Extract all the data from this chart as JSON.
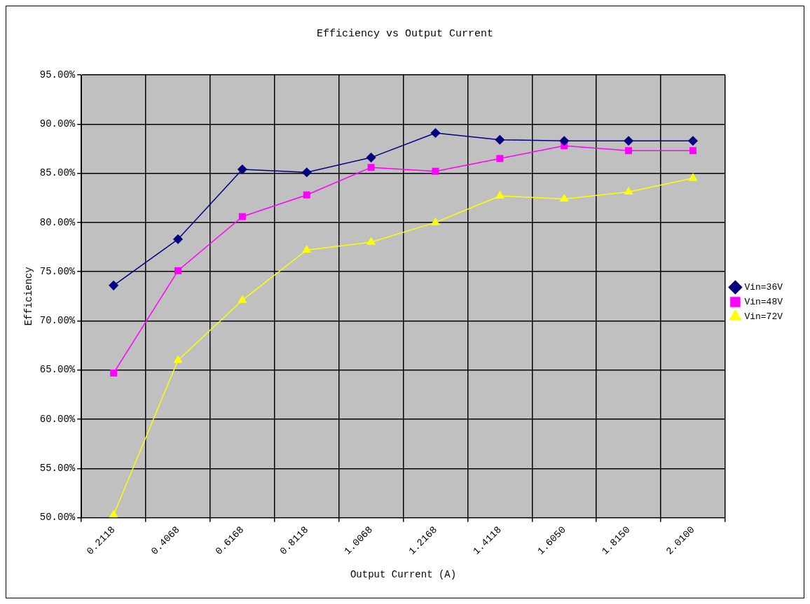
{
  "chart_data": {
    "type": "line",
    "title": "Efficiency vs Output Current",
    "xlabel": "Output Current (A)",
    "ylabel": "Efficiency",
    "categories": [
      "0.2118",
      "0.4068",
      "0.6168",
      "0.8118",
      "1.0068",
      "1.2168",
      "1.4118",
      "1.6050",
      "1.8150",
      "2.0100"
    ],
    "series": [
      {
        "name": "Vin=36V",
        "color": "#000080",
        "marker": "diamond",
        "values": [
          73.6,
          78.3,
          85.4,
          85.1,
          86.6,
          89.1,
          88.4,
          88.3,
          88.3,
          88.3
        ]
      },
      {
        "name": "Vin=48V",
        "color": "#ff00ff",
        "marker": "square",
        "values": [
          64.7,
          75.1,
          80.6,
          82.8,
          85.6,
          85.2,
          86.5,
          87.8,
          87.3,
          87.3
        ]
      },
      {
        "name": "Vin=72V",
        "color": "#ffff00",
        "marker": "triangle",
        "values": [
          50.3,
          66.0,
          72.1,
          77.2,
          78.0,
          80.0,
          82.7,
          82.4,
          83.1,
          84.5
        ]
      }
    ],
    "ylim": [
      50,
      95
    ],
    "yticks": [
      {
        "value": 50,
        "label": "50.00%"
      },
      {
        "value": 55,
        "label": "55.00%"
      },
      {
        "value": 60,
        "label": "60.00%"
      },
      {
        "value": 65,
        "label": "65.00%"
      },
      {
        "value": 70,
        "label": "70.00%"
      },
      {
        "value": 75,
        "label": "75.00%"
      },
      {
        "value": 80,
        "label": "80.00%"
      },
      {
        "value": 85,
        "label": "85.00%"
      },
      {
        "value": 90,
        "label": "90.00%"
      },
      {
        "value": 95,
        "label": "95.00%"
      }
    ],
    "grid": true,
    "legend": "right",
    "line_style": "solid"
  }
}
